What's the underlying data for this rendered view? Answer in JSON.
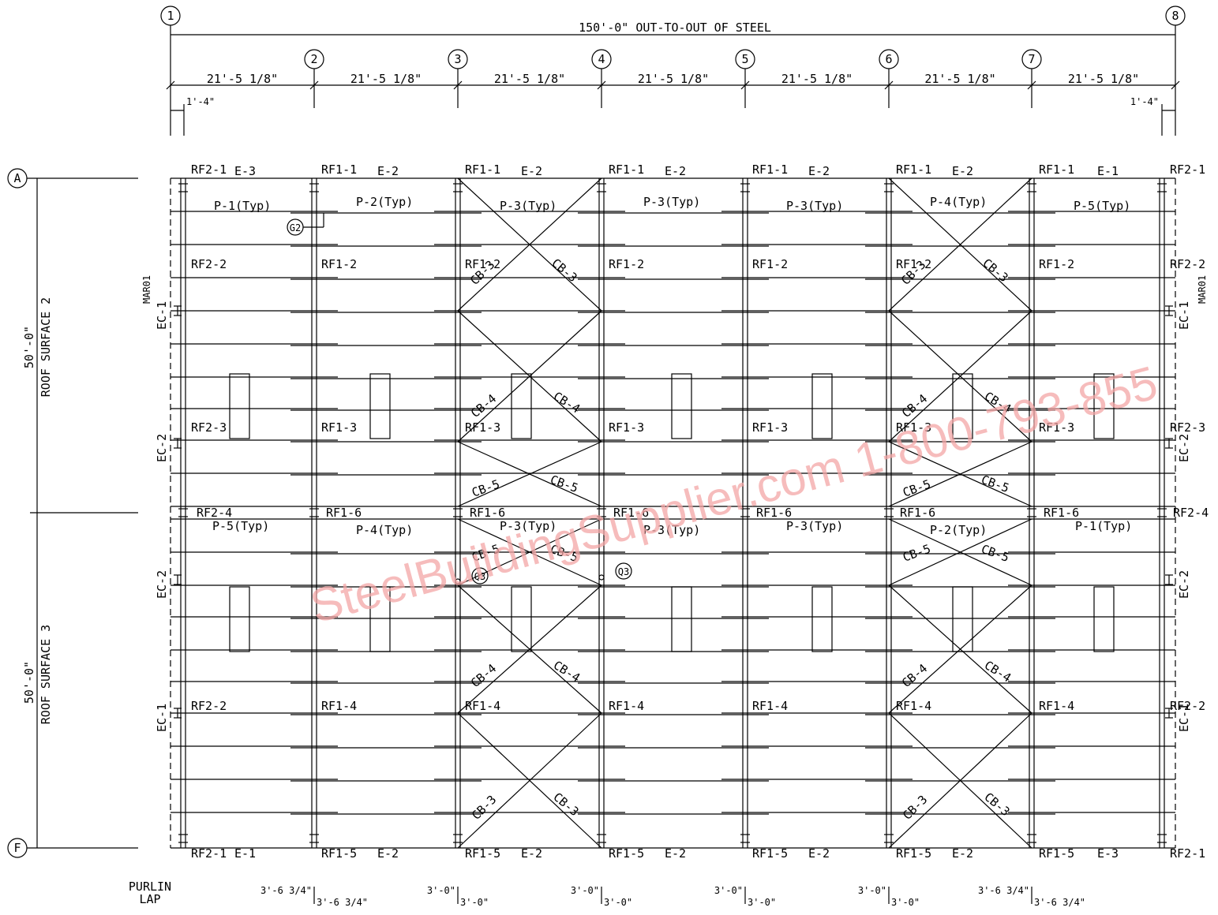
{
  "overall_dimension": "150'-0\" OUT-TO-OUT OF STEEL",
  "gridlines_numbered": [
    "1",
    "2",
    "3",
    "4",
    "5",
    "6",
    "7",
    "8"
  ],
  "gridlines_lettered": [
    "A",
    "F"
  ],
  "bay_dimensions": [
    "21'-5 1/8\"",
    "21'-5 1/8\"",
    "21'-5 1/8\"",
    "21'-5 1/8\"",
    "21'-5 1/8\"",
    "21'-5 1/8\"",
    "21'-5 1/8\""
  ],
  "end_offsets": [
    "1'-4\"",
    "1'-4\""
  ],
  "roof_surfaces": [
    {
      "name": "ROOF SURFACE 2",
      "dimension": "50'-0\""
    },
    {
      "name": "ROOF SURFACE 3",
      "dimension": "50'-0\""
    }
  ],
  "top_frames": [
    "RF2-1",
    "RF1-1",
    "RF1-1",
    "RF1-1",
    "RF1-1",
    "RF1-1",
    "RF1-1",
    "RF2-1"
  ],
  "top_eaves": [
    "E-3",
    "E-2",
    "E-2",
    "E-2",
    "E-2",
    "E-2",
    "E-1"
  ],
  "top_purlins": [
    "P-1(Typ)",
    "P-2(Typ)",
    "P-3(Typ)",
    "P-3(Typ)",
    "P-3(Typ)",
    "P-4(Typ)",
    "P-5(Typ)"
  ],
  "row_2_frames": [
    "RF2-2",
    "RF1-2",
    "RF1-2",
    "RF1-2",
    "RF1-2",
    "RF1-2",
    "RF1-2",
    "RF2-2"
  ],
  "row_3_frames": [
    "RF2-3",
    "RF1-3",
    "RF1-3",
    "RF1-3",
    "RF1-3",
    "RF1-3",
    "RF1-3",
    "RF2-3"
  ],
  "ridge_frames": [
    "RF2-4",
    "RF1-6",
    "RF1-6",
    "RF1-6",
    "RF1-6",
    "RF1-6",
    "RF1-6",
    "RF2-4"
  ],
  "bottom_purlins": [
    "P-5(Typ)",
    "P-4(Typ)",
    "P-3(Typ)",
    "P-3(Typ)",
    "P-3(Typ)",
    "P-2(Typ)",
    "P-1(Typ)"
  ],
  "row_5_frames": [
    "RF2-2",
    "RF1-4",
    "RF1-4",
    "RF1-4",
    "RF1-4",
    "RF1-4",
    "RF1-4",
    "RF2-2"
  ],
  "bottom_frames": [
    "RF2-1",
    "RF1-5",
    "RF1-5",
    "RF1-5",
    "RF1-5",
    "RF1-5",
    "RF1-5",
    "RF2-1"
  ],
  "bottom_eaves": [
    "E-1",
    "E-2",
    "E-2",
    "E-2",
    "E-2",
    "E-2",
    "E-3"
  ],
  "endwall_columns_left": [
    "EC-1",
    "EC-2",
    "EC-2",
    "EC-1"
  ],
  "endwall_columns_right": [
    "EC-1",
    "EC-2",
    "EC-2",
    "EC-1"
  ],
  "mark_left": "MAR01",
  "mark_right": "MAR01",
  "bracing": {
    "cb3": "CB-3",
    "cb4": "CB-4",
    "cb5": "CB-5"
  },
  "callouts": {
    "g2": "G2",
    "q3": "Q3"
  },
  "purlin_lap": {
    "title_line1": "PURLIN",
    "title_line2": "LAP",
    "pairs": [
      [
        "3'-6 3/4\"",
        "3'-6 3/4\""
      ],
      [
        "3'-0\"",
        "3'-0\""
      ],
      [
        "3'-0\"",
        "3'-0\""
      ],
      [
        "3'-0\"",
        "3'-0\""
      ],
      [
        "3'-0\"",
        "3'-0\""
      ],
      [
        "3'-6 3/4\"",
        "3'-6 3/4\""
      ]
    ]
  },
  "watermark": "SteelBuildingSupplier.com 1-800-793-855",
  "colors": {
    "line": "#000000",
    "watermark": "#f4a6a6"
  }
}
